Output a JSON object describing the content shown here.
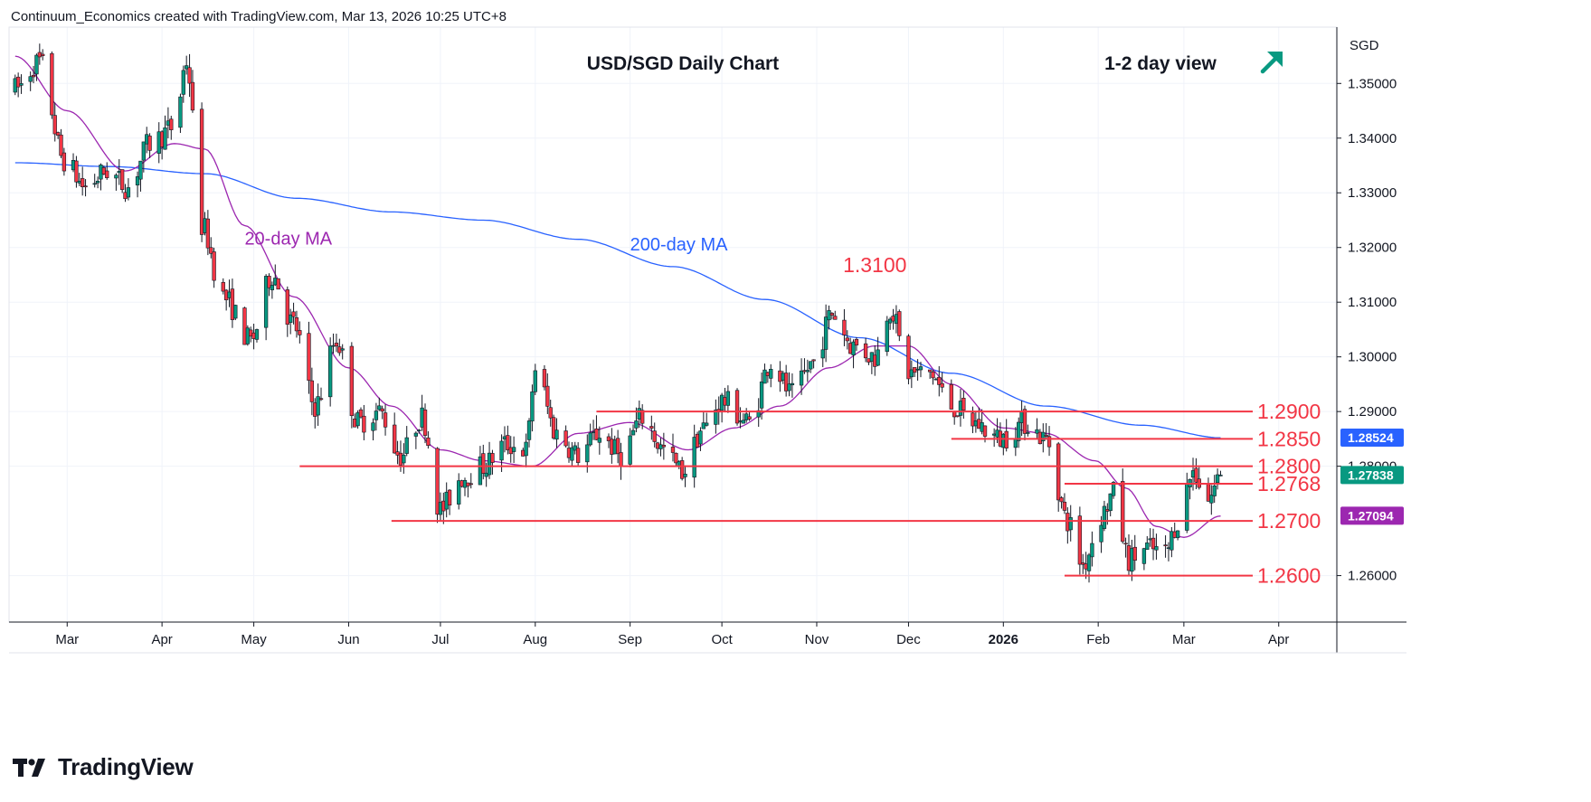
{
  "header": {
    "attribution": "Continuum_Economics created with TradingView.com, Mar 13, 2026 10:25 UTC+8"
  },
  "footer": {
    "brand": "TradingView"
  },
  "icons": {
    "logo": "tradingview-logo-icon",
    "direction": "up-right-arrow-icon"
  },
  "colors": {
    "up": "#089981",
    "down": "#f23645",
    "ma20": "#9c27b0",
    "ma200": "#2962ff",
    "level": "#f23645",
    "arrow": "#089981",
    "grid": "#f0f3fa"
  },
  "chart_data": {
    "type": "candlestick",
    "title": "USD/SGD Daily Chart",
    "view_label": "1-2 day view",
    "currency": "SGD",
    "ylim": [
      1.2515,
      1.3603
    ],
    "y_ticks": [
      "1.35000",
      "1.34000",
      "1.33000",
      "1.32000",
      "1.31000",
      "1.30000",
      "1.29000",
      "1.28000",
      "1.26000"
    ],
    "x_ticks": [
      {
        "label": "Mar",
        "bold": false
      },
      {
        "label": "Apr",
        "bold": false
      },
      {
        "label": "May",
        "bold": false
      },
      {
        "label": "Jun",
        "bold": false
      },
      {
        "label": "Jul",
        "bold": false
      },
      {
        "label": "Aug",
        "bold": false
      },
      {
        "label": "Sep",
        "bold": false
      },
      {
        "label": "Oct",
        "bold": false
      },
      {
        "label": "Nov",
        "bold": false
      },
      {
        "label": "Dec",
        "bold": false
      },
      {
        "label": "2026",
        "bold": true
      },
      {
        "label": "Feb",
        "bold": false
      },
      {
        "label": "Mar",
        "bold": false
      },
      {
        "label": "Apr",
        "bold": false
      }
    ],
    "price_path": [
      [
        "2025-02-12",
        1.349
      ],
      [
        "2025-02-20",
        1.354
      ],
      [
        "2025-02-28",
        1.336
      ],
      [
        "2025-03-07",
        1.331
      ],
      [
        "2025-03-14",
        1.334
      ],
      [
        "2025-03-21",
        1.331
      ],
      [
        "2025-03-28",
        1.339
      ],
      [
        "2025-04-05",
        1.342
      ],
      [
        "2025-04-09",
        1.354
      ],
      [
        "2025-04-14",
        1.324
      ],
      [
        "2025-04-21",
        1.311
      ],
      [
        "2025-04-30",
        1.303
      ],
      [
        "2025-05-07",
        1.315
      ],
      [
        "2025-05-14",
        1.306
      ],
      [
        "2025-05-21",
        1.291
      ],
      [
        "2025-05-28",
        1.303
      ],
      [
        "2025-06-04",
        1.288
      ],
      [
        "2025-06-11",
        1.29
      ],
      [
        "2025-06-18",
        1.282
      ],
      [
        "2025-06-25",
        1.289
      ],
      [
        "2025-07-01",
        1.272
      ],
      [
        "2025-07-08",
        1.278
      ],
      [
        "2025-07-15",
        1.28
      ],
      [
        "2025-07-22",
        1.284
      ],
      [
        "2025-07-29",
        1.283
      ],
      [
        "2025-08-01",
        1.298
      ],
      [
        "2025-08-08",
        1.286
      ],
      [
        "2025-08-15",
        1.282
      ],
      [
        "2025-08-22",
        1.286
      ],
      [
        "2025-08-29",
        1.282
      ],
      [
        "2025-09-05",
        1.289
      ],
      [
        "2025-09-12",
        1.283
      ],
      [
        "2025-09-18",
        1.279
      ],
      [
        "2025-09-25",
        1.287
      ],
      [
        "2025-10-01",
        1.292
      ],
      [
        "2025-10-10",
        1.288
      ],
      [
        "2025-10-17",
        1.299
      ],
      [
        "2025-10-24",
        1.293
      ],
      [
        "2025-10-31",
        1.299
      ],
      [
        "2025-11-06",
        1.308
      ],
      [
        "2025-11-13",
        1.302
      ],
      [
        "2025-11-20",
        1.3
      ],
      [
        "2025-11-25",
        1.309
      ],
      [
        "2025-12-01",
        1.297
      ],
      [
        "2025-12-08",
        1.297
      ],
      [
        "2025-12-15",
        1.291
      ],
      [
        "2025-12-22",
        1.288
      ],
      [
        "2025-12-31",
        1.285
      ],
      [
        "2026-01-08",
        1.288
      ],
      [
        "2026-01-15",
        1.285
      ],
      [
        "2026-01-22",
        1.27
      ],
      [
        "2026-01-27",
        1.262
      ],
      [
        "2026-02-02",
        1.271
      ],
      [
        "2026-02-06",
        1.275
      ],
      [
        "2026-02-11",
        1.263
      ],
      [
        "2026-02-17",
        1.265
      ],
      [
        "2026-02-23",
        1.264
      ],
      [
        "2026-02-27",
        1.27
      ],
      [
        "2026-03-04",
        1.279
      ],
      [
        "2026-03-09",
        1.274
      ],
      [
        "2026-03-13",
        1.2784
      ]
    ],
    "ma20_path": [
      [
        "2025-02-12",
        1.355
      ],
      [
        "2025-03-01",
        1.345
      ],
      [
        "2025-03-20",
        1.334
      ],
      [
        "2025-04-05",
        1.339
      ],
      [
        "2025-04-15",
        1.338
      ],
      [
        "2025-04-28",
        1.324
      ],
      [
        "2025-05-14",
        1.311
      ],
      [
        "2025-06-01",
        1.298
      ],
      [
        "2025-06-15",
        1.291
      ],
      [
        "2025-07-01",
        1.283
      ],
      [
        "2025-07-15",
        1.281
      ],
      [
        "2025-07-31",
        1.28
      ],
      [
        "2025-08-15",
        1.286
      ],
      [
        "2025-09-01",
        1.288
      ],
      [
        "2025-09-20",
        1.283
      ],
      [
        "2025-10-05",
        1.287
      ],
      [
        "2025-10-20",
        1.291
      ],
      [
        "2025-11-05",
        1.298
      ],
      [
        "2025-11-20",
        1.302
      ],
      [
        "2025-12-01",
        1.302
      ],
      [
        "2025-12-15",
        1.295
      ],
      [
        "2026-01-01",
        1.287
      ],
      [
        "2026-01-15",
        1.286
      ],
      [
        "2026-01-31",
        1.281
      ],
      [
        "2026-02-10",
        1.276
      ],
      [
        "2026-02-20",
        1.269
      ],
      [
        "2026-03-01",
        1.267
      ],
      [
        "2026-03-13",
        1.2709
      ]
    ],
    "ma200_path": [
      [
        "2025-02-12",
        1.3355
      ],
      [
        "2025-03-15",
        1.3348
      ],
      [
        "2025-04-15",
        1.3335
      ],
      [
        "2025-05-15",
        1.329
      ],
      [
        "2025-06-15",
        1.3265
      ],
      [
        "2025-07-15",
        1.325
      ],
      [
        "2025-08-15",
        1.3215
      ],
      [
        "2025-09-15",
        1.3165
      ],
      [
        "2025-10-15",
        1.3105
      ],
      [
        "2025-11-15",
        1.3035
      ],
      [
        "2025-12-15",
        1.297
      ],
      [
        "2026-01-15",
        1.291
      ],
      [
        "2026-02-15",
        1.2875
      ],
      [
        "2026-03-13",
        1.2852
      ]
    ],
    "ma_labels": [
      {
        "text": "20-day MA",
        "color": "ma20",
        "at": [
          "2025-04-28",
          1.3205
        ]
      },
      {
        "text": "200-day MA",
        "color": "ma200",
        "at": [
          "2025-09-01",
          1.3195
        ]
      }
    ],
    "levels": [
      {
        "label": "1.2900",
        "value": 1.29,
        "from": "2025-08-21"
      },
      {
        "label": "1.2850",
        "value": 1.285,
        "from": "2025-12-15"
      },
      {
        "label": "1.2800",
        "value": 1.28,
        "from": "2025-05-16"
      },
      {
        "label": "1.2768",
        "value": 1.2768,
        "from": "2026-01-21"
      },
      {
        "label": "1.2700",
        "value": 1.27,
        "from": "2025-06-15"
      },
      {
        "label": "1.2600",
        "value": 1.26,
        "from": "2026-01-21"
      }
    ],
    "annotations": [
      {
        "text": "1.3100",
        "at": [
          "2025-11-20",
          1.3155
        ]
      }
    ],
    "price_badges": [
      {
        "label": "1.28524",
        "value": 1.28524,
        "color": "ma200"
      },
      {
        "label": "1.27838",
        "value": 1.27838,
        "color": "up"
      },
      {
        "label": "1.27094",
        "value": 1.27094,
        "color": "ma20"
      }
    ]
  }
}
